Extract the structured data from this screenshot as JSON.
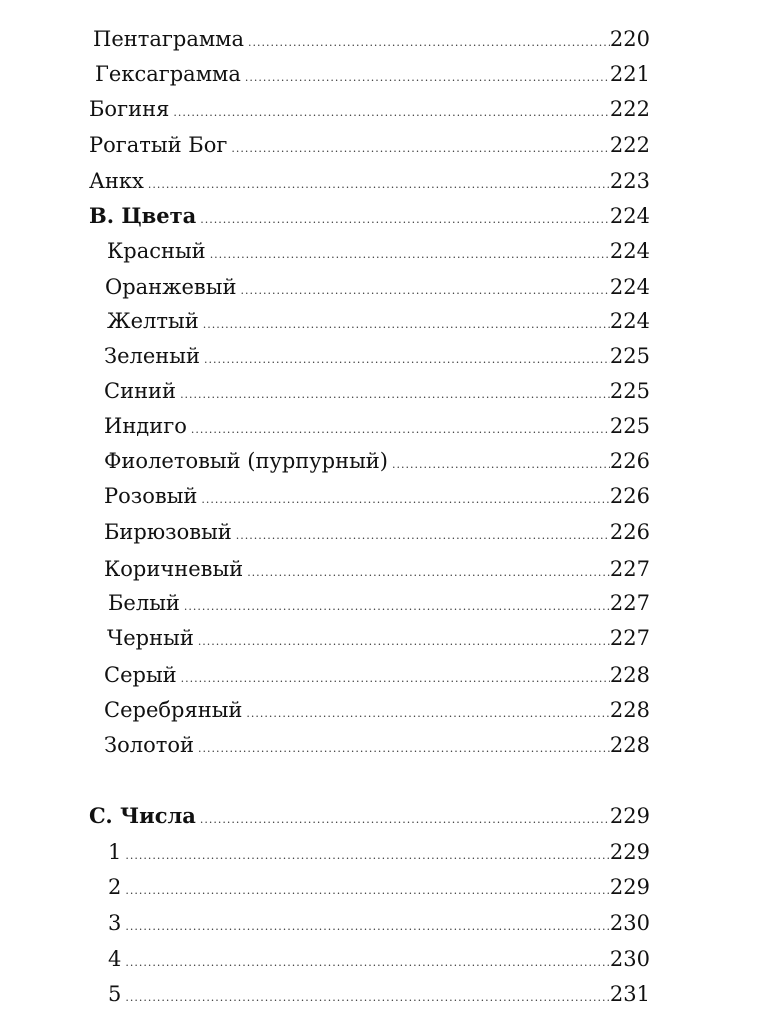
{
  "entries": [
    {
      "title": "Пентаграмма",
      "page": "220"
    },
    {
      "title": "Гексаграмма",
      "page": "221"
    },
    {
      "title": "Богиня",
      "page": "222"
    },
    {
      "title": "Рогатый Бог",
      "page": "222"
    },
    {
      "title": "Анкх",
      "page": "223"
    },
    {
      "title": "B. Цвета",
      "page": "224"
    },
    {
      "title": "Красный",
      "page": "224"
    },
    {
      "title": "Оранжевый",
      "page": "224"
    },
    {
      "title": "Желтый",
      "page": "224"
    },
    {
      "title": "Зеленый",
      "page": "225"
    },
    {
      "title": "Синий",
      "page": "225"
    },
    {
      "title": "Индиго",
      "page": "225"
    },
    {
      "title": "Фиолетовый (пурпурный)",
      "page": "226"
    },
    {
      "title": "Розовый",
      "page": "226"
    },
    {
      "title": "Бирюзовый",
      "page": "226"
    },
    {
      "title": "Коричневый",
      "page": "227"
    },
    {
      "title": "Белый",
      "page": "227"
    },
    {
      "title": "Черный",
      "page": "227"
    },
    {
      "title": "Серый",
      "page": "228"
    },
    {
      "title": "Серебряный",
      "page": "228"
    },
    {
      "title": "Золотой",
      "page": "228"
    },
    {
      "title": "C. Числа",
      "page": "229"
    },
    {
      "title": "1",
      "page": "229"
    },
    {
      "title": "2",
      "page": "229"
    },
    {
      "title": "3",
      "page": "230"
    },
    {
      "title": "4",
      "page": "230"
    },
    {
      "title": "5",
      "page": "231"
    }
  ]
}
